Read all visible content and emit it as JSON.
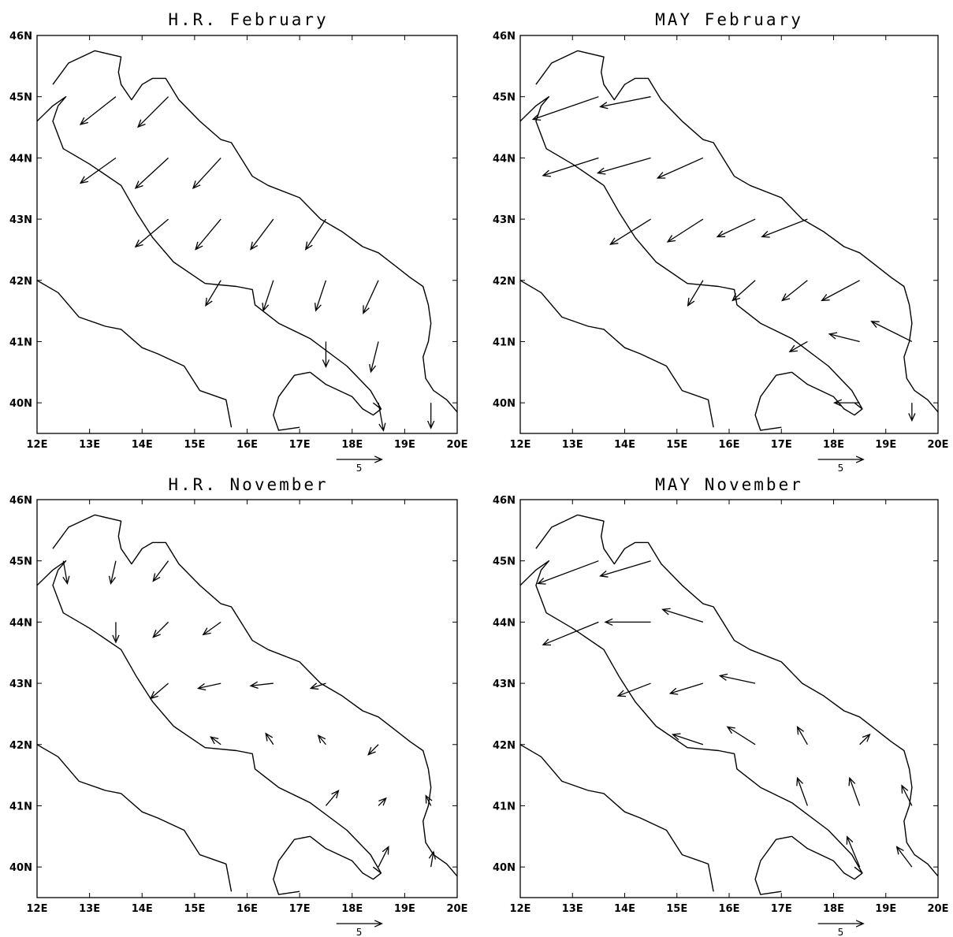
{
  "panels": [
    {
      "title": "H.R. February",
      "reference_vector": {
        "label": "5",
        "magnitude": 5
      },
      "vectors": [
        {
          "lon": 13.5,
          "lat": 45.0,
          "u": -7,
          "v": -5.5
        },
        {
          "lon": 14.5,
          "lat": 45.0,
          "u": -6,
          "v": -6
        },
        {
          "lon": 13.5,
          "lat": 44.0,
          "u": -7,
          "v": -5
        },
        {
          "lon": 14.5,
          "lat": 44.0,
          "u": -6.5,
          "v": -6
        },
        {
          "lon": 15.5,
          "lat": 44.0,
          "u": -5.5,
          "v": -6
        },
        {
          "lon": 14.5,
          "lat": 43.0,
          "u": -6.5,
          "v": -5.5
        },
        {
          "lon": 15.5,
          "lat": 43.0,
          "u": -5,
          "v": -6
        },
        {
          "lon": 16.5,
          "lat": 43.0,
          "u": -4.5,
          "v": -6
        },
        {
          "lon": 17.5,
          "lat": 43.0,
          "u": -4,
          "v": -6
        },
        {
          "lon": 15.5,
          "lat": 42.0,
          "u": -3,
          "v": -5
        },
        {
          "lon": 16.5,
          "lat": 42.0,
          "u": -2,
          "v": -6
        },
        {
          "lon": 17.5,
          "lat": 42.0,
          "u": -2,
          "v": -6
        },
        {
          "lon": 18.5,
          "lat": 42.0,
          "u": -3,
          "v": -6.5
        },
        {
          "lon": 17.5,
          "lat": 41.0,
          "u": 0,
          "v": -5
        },
        {
          "lon": 18.5,
          "lat": 41.0,
          "u": -1.5,
          "v": -6
        },
        {
          "lon": 18.5,
          "lat": 40.0,
          "u": 1,
          "v": -5.5
        },
        {
          "lon": 19.5,
          "lat": 40.0,
          "u": 0,
          "v": -5
        }
      ]
    },
    {
      "title": "MAY February",
      "reference_vector": {
        "label": "5",
        "magnitude": 5
      },
      "vectors": [
        {
          "lon": 13.5,
          "lat": 45.0,
          "u": -13,
          "v": -4.5
        },
        {
          "lon": 14.5,
          "lat": 45.0,
          "u": -10,
          "v": -2
        },
        {
          "lon": 13.5,
          "lat": 44.0,
          "u": -11,
          "v": -3.5
        },
        {
          "lon": 14.5,
          "lat": 44.0,
          "u": -10.5,
          "v": -3
        },
        {
          "lon": 15.5,
          "lat": 44.0,
          "u": -9,
          "v": -4
        },
        {
          "lon": 14.5,
          "lat": 43.0,
          "u": -8,
          "v": -5
        },
        {
          "lon": 15.5,
          "lat": 43.0,
          "u": -7,
          "v": -4.5
        },
        {
          "lon": 16.5,
          "lat": 43.0,
          "u": -7.5,
          "v": -3.5
        },
        {
          "lon": 17.5,
          "lat": 43.0,
          "u": -9,
          "v": -3.5
        },
        {
          "lon": 15.5,
          "lat": 42.0,
          "u": -3,
          "v": -5
        },
        {
          "lon": 16.5,
          "lat": 42.0,
          "u": -4.5,
          "v": -4
        },
        {
          "lon": 17.5,
          "lat": 42.0,
          "u": -5,
          "v": -4
        },
        {
          "lon": 18.5,
          "lat": 42.0,
          "u": -7.5,
          "v": -4
        },
        {
          "lon": 17.5,
          "lat": 41.0,
          "u": -3.5,
          "v": -2
        },
        {
          "lon": 18.5,
          "lat": 41.0,
          "u": -6,
          "v": 1.5
        },
        {
          "lon": 19.5,
          "lat": 41.0,
          "u": -8,
          "v": 4
        },
        {
          "lon": 18.5,
          "lat": 40.0,
          "u": -5,
          "v": 0
        },
        {
          "lon": 19.5,
          "lat": 40.0,
          "u": 0,
          "v": -3.5
        }
      ]
    },
    {
      "title": "H.R. November",
      "reference_vector": {
        "label": "5",
        "magnitude": 5
      },
      "vectors": [
        {
          "lon": 12.5,
          "lat": 45.0,
          "u": 0.8,
          "v": -4.5
        },
        {
          "lon": 13.5,
          "lat": 45.0,
          "u": -1,
          "v": -4.5
        },
        {
          "lon": 14.5,
          "lat": 45.0,
          "u": -3,
          "v": -4
        },
        {
          "lon": 13.5,
          "lat": 44.0,
          "u": 0,
          "v": -4
        },
        {
          "lon": 14.5,
          "lat": 44.0,
          "u": -3,
          "v": -3
        },
        {
          "lon": 15.5,
          "lat": 44.0,
          "u": -3.5,
          "v": -2.5
        },
        {
          "lon": 14.5,
          "lat": 43.0,
          "u": -3.5,
          "v": -3
        },
        {
          "lon": 15.5,
          "lat": 43.0,
          "u": -4.5,
          "v": -1
        },
        {
          "lon": 16.5,
          "lat": 43.0,
          "u": -4.5,
          "v": -0.5
        },
        {
          "lon": 17.5,
          "lat": 43.0,
          "u": -3,
          "v": -1
        },
        {
          "lon": 15.5,
          "lat": 42.0,
          "u": -2,
          "v": 1.5
        },
        {
          "lon": 16.5,
          "lat": 42.0,
          "u": -1.5,
          "v": 2.2
        },
        {
          "lon": 17.5,
          "lat": 42.0,
          "u": -1.5,
          "v": 1.8
        },
        {
          "lon": 18.5,
          "lat": 42.0,
          "u": -2,
          "v": -2
        },
        {
          "lon": 17.5,
          "lat": 41.0,
          "u": 2.5,
          "v": 3
        },
        {
          "lon": 18.5,
          "lat": 41.0,
          "u": 1.5,
          "v": 1.5
        },
        {
          "lon": 19.5,
          "lat": 41.0,
          "u": -1,
          "v": 2
        },
        {
          "lon": 18.5,
          "lat": 40.0,
          "u": 2,
          "v": 4
        },
        {
          "lon": 19.5,
          "lat": 40.0,
          "u": 0.5,
          "v": 3
        }
      ]
    },
    {
      "title": "MAY November",
      "reference_vector": {
        "label": "5",
        "magnitude": 5
      },
      "vectors": [
        {
          "lon": 13.5,
          "lat": 45.0,
          "u": -12,
          "v": -4.5
        },
        {
          "lon": 14.5,
          "lat": 45.0,
          "u": -10,
          "v": -3
        },
        {
          "lon": 13.5,
          "lat": 44.0,
          "u": -11,
          "v": -4.5
        },
        {
          "lon": 14.5,
          "lat": 44.0,
          "u": -9,
          "v": 0
        },
        {
          "lon": 15.5,
          "lat": 44.0,
          "u": -8,
          "v": 2.5
        },
        {
          "lon": 14.5,
          "lat": 43.0,
          "u": -6.5,
          "v": -2.5
        },
        {
          "lon": 15.5,
          "lat": 43.0,
          "u": -6.5,
          "v": -2
        },
        {
          "lon": 16.5,
          "lat": 43.0,
          "u": -7,
          "v": 1.5
        },
        {
          "lon": 15.5,
          "lat": 42.0,
          "u": -6,
          "v": 2
        },
        {
          "lon": 16.5,
          "lat": 42.0,
          "u": -5.5,
          "v": 3.5
        },
        {
          "lon": 17.5,
          "lat": 42.0,
          "u": -2,
          "v": 3.5
        },
        {
          "lon": 18.5,
          "lat": 42.0,
          "u": 2,
          "v": 2
        },
        {
          "lon": 17.5,
          "lat": 41.0,
          "u": -2,
          "v": 5.5
        },
        {
          "lon": 18.5,
          "lat": 41.0,
          "u": -2,
          "v": 5.5
        },
        {
          "lon": 19.5,
          "lat": 41.0,
          "u": -2,
          "v": 4
        },
        {
          "lon": 18.5,
          "lat": 40.0,
          "u": -2.5,
          "v": 6
        },
        {
          "lon": 19.5,
          "lat": 40.0,
          "u": -3,
          "v": 4
        }
      ]
    }
  ],
  "axes": {
    "lon_ticks": [
      "12E",
      "13E",
      "14E",
      "15E",
      "16E",
      "17E",
      "18E",
      "19E",
      "20E"
    ],
    "lat_ticks": [
      "40N",
      "41N",
      "42N",
      "43N",
      "44N",
      "45N",
      "46N"
    ],
    "lon_range": [
      12,
      20
    ],
    "lat_range": [
      39.5,
      46
    ]
  },
  "coastlines": {
    "italy_adriatic": [
      [
        12.0,
        44.6
      ],
      [
        12.3,
        44.85
      ],
      [
        12.55,
        45.0
      ],
      [
        12.4,
        44.85
      ],
      [
        12.3,
        44.6
      ],
      [
        12.5,
        44.15
      ],
      [
        13.0,
        43.9
      ],
      [
        13.6,
        43.55
      ],
      [
        13.9,
        43.1
      ],
      [
        14.2,
        42.7
      ],
      [
        14.6,
        42.3
      ],
      [
        15.2,
        41.95
      ],
      [
        15.8,
        41.9
      ],
      [
        16.1,
        41.85
      ],
      [
        16.15,
        41.6
      ],
      [
        16.6,
        41.3
      ],
      [
        17.2,
        41.05
      ],
      [
        17.9,
        40.6
      ],
      [
        18.35,
        40.2
      ],
      [
        18.55,
        39.9
      ],
      [
        18.4,
        40.0
      ]
    ],
    "italy_adriatic_labels": "",
    "italy_tyrrhenian": [
      [
        12.0,
        42.0
      ],
      [
        12.4,
        41.8
      ],
      [
        12.8,
        41.4
      ],
      [
        13.3,
        41.25
      ],
      [
        13.6,
        41.2
      ],
      [
        14.0,
        40.9
      ],
      [
        14.3,
        40.8
      ],
      [
        14.8,
        40.6
      ],
      [
        15.1,
        40.2
      ],
      [
        15.6,
        40.05
      ],
      [
        15.7,
        39.6
      ]
    ],
    "gulf_taranto": [
      [
        17.2,
        40.5
      ],
      [
        16.9,
        40.45
      ],
      [
        16.6,
        40.1
      ],
      [
        16.5,
        39.8
      ],
      [
        16.6,
        39.55
      ],
      [
        17.0,
        39.6
      ]
    ],
    "gulf_taranto_east": [
      [
        17.2,
        40.5
      ],
      [
        17.5,
        40.3
      ],
      [
        18.0,
        40.1
      ],
      [
        18.2,
        39.9
      ],
      [
        18.4,
        39.8
      ],
      [
        18.55,
        39.9
      ]
    ],
    "balkan": [
      [
        12.3,
        45.2
      ],
      [
        12.6,
        45.55
      ],
      [
        13.1,
        45.75
      ],
      [
        13.6,
        45.65
      ],
      [
        13.55,
        45.4
      ],
      [
        13.6,
        45.2
      ],
      [
        13.8,
        44.95
      ],
      [
        14.0,
        45.2
      ],
      [
        14.2,
        45.3
      ],
      [
        14.45,
        45.3
      ],
      [
        14.7,
        44.95
      ],
      [
        15.1,
        44.6
      ],
      [
        15.5,
        44.3
      ],
      [
        15.7,
        44.25
      ],
      [
        16.1,
        43.7
      ],
      [
        16.4,
        43.55
      ],
      [
        17.0,
        43.35
      ],
      [
        17.4,
        43.0
      ],
      [
        17.8,
        42.8
      ],
      [
        18.2,
        42.55
      ],
      [
        18.5,
        42.45
      ],
      [
        18.8,
        42.25
      ],
      [
        19.1,
        42.05
      ],
      [
        19.35,
        41.9
      ],
      [
        19.45,
        41.6
      ],
      [
        19.5,
        41.3
      ],
      [
        19.45,
        41.0
      ],
      [
        19.35,
        40.75
      ],
      [
        19.4,
        40.4
      ],
      [
        19.55,
        40.2
      ],
      [
        19.8,
        40.05
      ],
      [
        20.0,
        39.85
      ]
    ]
  }
}
